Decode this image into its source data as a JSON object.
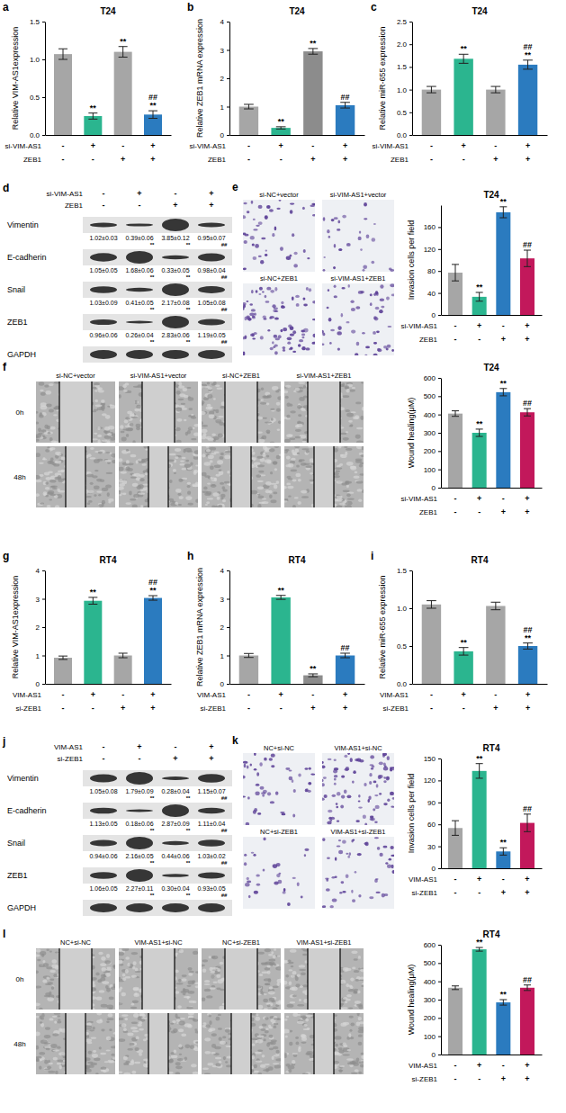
{
  "chart_data": [
    {
      "panel": "a",
      "type": "bar",
      "title": "T24",
      "ylabel": "Relative VIM-AS1expression",
      "categories": [
        null,
        null,
        null,
        null
      ],
      "values": [
        1.07,
        0.25,
        1.1,
        0.27
      ],
      "errors": [
        0.07,
        0.04,
        0.07,
        0.05
      ],
      "colors": [
        "#a6a6a6",
        "#2bb58f",
        "#a6a6a6",
        "#2b7bbf"
      ],
      "ylim": [
        0,
        1.5
      ],
      "yticks": [
        {
          "value": 0,
          "label": "0.0"
        },
        {
          "value": 0.5,
          "label": "0.5"
        },
        {
          "value": 1,
          "label": "1.0"
        },
        {
          "value": 1.5,
          "label": "1.5"
        }
      ],
      "significance": [
        null,
        [
          "**"
        ],
        [
          "**"
        ],
        [
          "**",
          "##"
        ]
      ],
      "conditions": [
        {
          "label": "si-VIM-AS1",
          "signs": [
            "-",
            "+",
            "-",
            "+"
          ]
        },
        {
          "label": "ZEB1",
          "signs": [
            "-",
            "-",
            "+",
            "+"
          ]
        }
      ]
    },
    {
      "panel": "b",
      "type": "bar",
      "title": "T24",
      "ylabel": "Relative ZEB1 mRNA expression",
      "categories": [
        null,
        null,
        null,
        null
      ],
      "values": [
        1.0,
        0.25,
        2.95,
        1.05
      ],
      "errors": [
        0.08,
        0.04,
        0.1,
        0.1
      ],
      "colors": [
        "#a6a6a6",
        "#2bb58f",
        "#8c8c8c",
        "#2b7bbf"
      ],
      "ylim": [
        0,
        4
      ],
      "yticks": [
        0,
        1,
        2,
        3,
        4
      ],
      "significance": [
        null,
        [
          "**"
        ],
        [
          "**"
        ],
        [
          "##"
        ]
      ],
      "conditions": [
        {
          "label": "si-VIM-AS1",
          "signs": [
            "-",
            "+",
            "-",
            "+"
          ]
        },
        {
          "label": "ZEB1",
          "signs": [
            "-",
            "-",
            "+",
            "+"
          ]
        }
      ]
    },
    {
      "panel": "c",
      "type": "bar",
      "title": "T24",
      "ylabel": "Relative miR-655 expression",
      "categories": [
        null,
        null,
        null,
        null
      ],
      "values": [
        1.0,
        1.68,
        1.0,
        1.55
      ],
      "errors": [
        0.07,
        0.1,
        0.07,
        0.1
      ],
      "colors": [
        "#a6a6a6",
        "#2bb58f",
        "#a6a6a6",
        "#2b7bbf"
      ],
      "ylim": [
        0,
        2.5
      ],
      "yticks": [
        {
          "value": 0,
          "label": "0.0"
        },
        {
          "value": 0.5,
          "label": "0.5"
        },
        {
          "value": 1,
          "label": "1.0"
        },
        {
          "value": 1.5,
          "label": "1.5"
        },
        {
          "value": 2,
          "label": "2.0"
        },
        {
          "value": 2.5,
          "label": "2.5"
        }
      ],
      "significance": [
        null,
        [
          "**"
        ],
        null,
        [
          "**",
          "##"
        ]
      ],
      "conditions": [
        {
          "label": "si-VIM-AS1",
          "signs": [
            "-",
            "+",
            "-",
            "+"
          ]
        },
        {
          "label": "ZEB1",
          "signs": [
            "-",
            "-",
            "+",
            "+"
          ]
        }
      ]
    },
    {
      "type": "bar",
      "title": "T24",
      "ylabel": "Invasion cells per field",
      "categories": [
        null,
        null,
        null,
        null
      ],
      "values": [
        77,
        33,
        187,
        103
      ],
      "errors": [
        15,
        8,
        10,
        15
      ],
      "colors": [
        "#a6a6a6",
        "#2bb58f",
        "#2b7bbf",
        "#c2185b"
      ],
      "ylim": [
        0,
        200
      ],
      "yticks": [
        0,
        40,
        80,
        120,
        160
      ],
      "significance": [
        null,
        [
          "**"
        ],
        [
          "**"
        ],
        [
          "##"
        ]
      ],
      "conditions": [
        {
          "label": "si-VIM-AS1",
          "signs": [
            "-",
            "+",
            "-",
            "+"
          ]
        },
        {
          "label": "ZEB1",
          "signs": [
            "-",
            "-",
            "+",
            "+"
          ]
        }
      ]
    },
    {
      "type": "bar",
      "title": "T24",
      "ylabel": "Wound healing(μM)",
      "categories": [
        null,
        null,
        null,
        null
      ],
      "values": [
        405,
        300,
        522,
        412
      ],
      "errors": [
        15,
        20,
        20,
        20
      ],
      "colors": [
        "#a6a6a6",
        "#2bb58f",
        "#2b7bbf",
        "#c2185b"
      ],
      "ylim": [
        0,
        600
      ],
      "yticks": [
        0,
        100,
        200,
        300,
        400,
        500,
        600
      ],
      "significance": [
        null,
        [
          "**"
        ],
        [
          "**"
        ],
        [
          "##"
        ]
      ],
      "conditions": [
        {
          "label": "si-VIM-AS1",
          "signs": [
            "-",
            "+",
            "-",
            "+"
          ]
        },
        {
          "label": "ZEB1",
          "signs": [
            "-",
            "-",
            "+",
            "+"
          ]
        }
      ]
    },
    {
      "panel": "g",
      "type": "bar",
      "title": "RT4",
      "ylabel": "Relative VIM-AS1expression",
      "categories": [
        null,
        null,
        null,
        null
      ],
      "values": [
        0.92,
        2.93,
        1.0,
        3.03
      ],
      "errors": [
        0.06,
        0.12,
        0.08,
        0.08
      ],
      "colors": [
        "#a6a6a6",
        "#2bb58f",
        "#a6a6a6",
        "#2b7bbf"
      ],
      "ylim": [
        0,
        4
      ],
      "yticks": [
        0,
        1,
        2,
        3,
        4
      ],
      "significance": [
        null,
        [
          "**"
        ],
        null,
        [
          "**",
          "##"
        ]
      ],
      "conditions": [
        {
          "label": "VIM-AS1",
          "signs": [
            "-",
            "+",
            "-",
            "+"
          ]
        },
        {
          "label": "si-ZEB1",
          "signs": [
            "-",
            "-",
            "+",
            "+"
          ]
        }
      ]
    },
    {
      "panel": "h",
      "type": "bar",
      "title": "RT4",
      "ylabel": "Relative ZEB1 mRNA expression",
      "categories": [
        null,
        null,
        null,
        null
      ],
      "values": [
        1.0,
        3.05,
        0.3,
        1.0
      ],
      "errors": [
        0.07,
        0.07,
        0.05,
        0.08
      ],
      "colors": [
        "#a6a6a6",
        "#2bb58f",
        "#8c8c8c",
        "#2b7bbf"
      ],
      "ylim": [
        0,
        4
      ],
      "yticks": [
        0,
        1,
        2,
        3,
        4
      ],
      "significance": [
        null,
        [
          "**"
        ],
        [
          "**"
        ],
        [
          "##"
        ]
      ],
      "conditions": [
        {
          "label": "VIM-AS1",
          "signs": [
            "-",
            "+",
            "-",
            "+"
          ]
        },
        {
          "label": "si-ZEB1",
          "signs": [
            "-",
            "-",
            "+",
            "+"
          ]
        }
      ]
    },
    {
      "panel": "i",
      "type": "bar",
      "title": "RT4",
      "ylabel": "Relative miR-655 expression",
      "categories": [
        null,
        null,
        null,
        null
      ],
      "values": [
        1.05,
        0.43,
        1.03,
        0.5
      ],
      "errors": [
        0.05,
        0.05,
        0.05,
        0.04
      ],
      "colors": [
        "#a6a6a6",
        "#2bb58f",
        "#a6a6a6",
        "#2b7bbf"
      ],
      "ylim": [
        0,
        1.5
      ],
      "yticks": [
        {
          "value": 0,
          "label": "0.0"
        },
        {
          "value": 0.5,
          "label": "0.5"
        },
        {
          "value": 1,
          "label": "1.0"
        },
        {
          "value": 1.5,
          "label": "1.5"
        }
      ],
      "significance": [
        null,
        [
          "**"
        ],
        null,
        [
          "**",
          "##"
        ]
      ],
      "conditions": [
        {
          "label": "VIM-AS1",
          "signs": [
            "-",
            "+",
            "-",
            "+"
          ]
        },
        {
          "label": "si-ZEB1",
          "signs": [
            "-",
            "-",
            "+",
            "+"
          ]
        }
      ]
    },
    {
      "type": "bar",
      "title": "RT4",
      "ylabel": "Invasion cells per field",
      "categories": [
        null,
        null,
        null,
        null
      ],
      "values": [
        55,
        133,
        23,
        62
      ],
      "errors": [
        10,
        10,
        5,
        12
      ],
      "colors": [
        "#a6a6a6",
        "#2bb58f",
        "#2b7bbf",
        "#c2185b"
      ],
      "ylim": [
        0,
        150
      ],
      "yticks": [
        0,
        30,
        60,
        90,
        120,
        150
      ],
      "significance": [
        null,
        [
          "**"
        ],
        [
          "**"
        ],
        [
          "##"
        ]
      ],
      "conditions": [
        {
          "label": "VIM-AS1",
          "signs": [
            "-",
            "+",
            "-",
            "+"
          ]
        },
        {
          "label": "si-ZEB1",
          "signs": [
            "-",
            "-",
            "+",
            "+"
          ]
        }
      ]
    },
    {
      "type": "bar",
      "title": "RT4",
      "ylabel": "Wound healing(μM)",
      "categories": [
        null,
        null,
        null,
        null
      ],
      "values": [
        365,
        575,
        285,
        365
      ],
      "errors": [
        10,
        10,
        15,
        15
      ],
      "colors": [
        "#a6a6a6",
        "#2bb58f",
        "#2b7bbf",
        "#c2185b"
      ],
      "ylim": [
        0,
        600
      ],
      "yticks": [
        0,
        100,
        200,
        300,
        400,
        500,
        600
      ],
      "significance": [
        null,
        [
          "**"
        ],
        [
          "**"
        ],
        [
          "##"
        ]
      ],
      "conditions": [
        {
          "label": "VIM-AS1",
          "signs": [
            "-",
            "+",
            "-",
            "+"
          ]
        },
        {
          "label": "si-ZEB1",
          "signs": [
            "-",
            "-",
            "+",
            "+"
          ]
        }
      ]
    }
  ],
  "blots": [
    {
      "panel": "d",
      "conditions": [
        {
          "label": "si-VIM-AS1",
          "signs": [
            "-",
            "+",
            "-",
            "+"
          ]
        },
        {
          "label": "ZEB1",
          "signs": [
            "-",
            "-",
            "+",
            "+"
          ]
        }
      ],
      "rows": [
        {
          "label": "Vimentin",
          "values": [
            1.02,
            0.39,
            3.85,
            0.95
          ],
          "value_labels": [
            "1.02±0.03",
            "0.39±0.06",
            "3.85±0.12",
            "0.95±0.07"
          ],
          "sig": [
            null,
            "**",
            "**",
            "##"
          ]
        },
        {
          "label": "E-cadherin",
          "values": [
            1.05,
            1.68,
            0.33,
            0.98
          ],
          "value_labels": [
            "1.05±0.05",
            "1.68±0.06",
            "0.33±0.05",
            "0.98±0.04"
          ],
          "sig": [
            null,
            "**",
            "**",
            "##"
          ]
        },
        {
          "label": "Snail",
          "values": [
            1.03,
            0.41,
            2.17,
            1.05
          ],
          "value_labels": [
            "1.03±0.09",
            "0.41±0.05",
            "2.17±0.08",
            "1.05±0.08"
          ],
          "sig": [
            null,
            "**",
            "**",
            "##"
          ]
        },
        {
          "label": "ZEB1",
          "values": [
            0.96,
            0.26,
            2.83,
            1.19
          ],
          "value_labels": [
            "0.96±0.06",
            "0.26±0.04",
            "2.83±0.06",
            "1.19±0.05"
          ],
          "sig": [
            null,
            "**",
            "**",
            "##"
          ]
        },
        {
          "label": "GAPDH"
        }
      ]
    },
    {
      "panel": "j",
      "conditions": [
        {
          "label": "VIM-AS1",
          "signs": [
            "-",
            "+",
            "-",
            "+"
          ]
        },
        {
          "label": "si-ZEB1",
          "signs": [
            "-",
            "-",
            "+",
            "+"
          ]
        }
      ],
      "rows": [
        {
          "label": "Vimentin",
          "values": [
            1.05,
            1.79,
            0.28,
            1.15
          ],
          "value_labels": [
            "1.05±0.08",
            "1.79±0.09",
            "0.28±0.04",
            "1.15±0.07"
          ],
          "sig": [
            null,
            "**",
            "**",
            "##"
          ]
        },
        {
          "label": "E-cadherin",
          "values": [
            1.13,
            0.18,
            2.87,
            1.11
          ],
          "value_labels": [
            "1.13±0.05",
            "0.18±0.06",
            "2.87±0.09",
            "1.11±0.04"
          ],
          "sig": [
            null,
            "**",
            "**",
            "##"
          ]
        },
        {
          "label": "Snail",
          "values": [
            0.94,
            2.16,
            0.44,
            1.03
          ],
          "value_labels": [
            "0.94±0.06",
            "2.16±0.05",
            "0.44±0.06",
            "1.03±0.02"
          ],
          "sig": [
            null,
            "**",
            "**",
            "##"
          ]
        },
        {
          "label": "ZEB1",
          "values": [
            1.06,
            2.27,
            0.3,
            0.93
          ],
          "value_labels": [
            "1.06±0.05",
            "2.27±0.11",
            "0.30±0.04",
            "0.93±0.05"
          ],
          "sig": [
            null,
            "**",
            "**",
            "##"
          ]
        },
        {
          "label": "GAPDH"
        }
      ]
    }
  ],
  "image_panels": [
    {
      "panel": "e",
      "labels": [
        "si-NC+vector",
        "si-VIM-AS1+vector",
        "si-NC+ZEB1",
        "si-VIM-AS1+ZEB1"
      ]
    },
    {
      "panel": "f",
      "labels": [
        "si-NC+vector",
        "si-VIM-AS1+vector",
        "si-NC+ZEB1",
        "si-VIM-AS1+ZEB1"
      ],
      "times": [
        "0h",
        "48h"
      ]
    },
    {
      "panel": "k",
      "labels": [
        "NC+si-NC",
        "VIM-AS1+si-NC",
        "NC+si-ZEB1",
        "VIM-AS1+si-ZEB1"
      ]
    },
    {
      "panel": "l",
      "labels": [
        "NC+si-NC",
        "VIM-AS1+si-NC",
        "NC+si-ZEB1",
        "VIM-AS1+si-ZEB1"
      ],
      "times": [
        "0h",
        "48h"
      ]
    }
  ]
}
